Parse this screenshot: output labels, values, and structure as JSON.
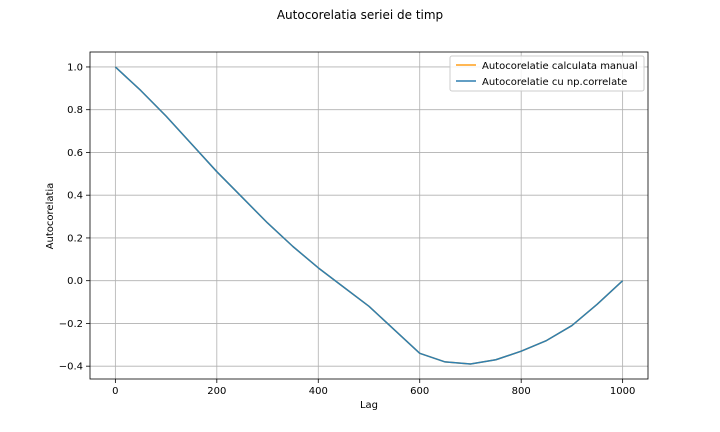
{
  "chart_data": {
    "type": "line",
    "title": "Autocorelatia seriei de timp",
    "xlabel": "Lag",
    "ylabel": "Autocorelatia",
    "xlim": [
      -50,
      1050
    ],
    "ylim": [
      -0.46,
      1.07
    ],
    "xticks": [
      0,
      200,
      400,
      600,
      800,
      1000
    ],
    "xtick_labels": [
      "0",
      "200",
      "400",
      "600",
      "800",
      "1000"
    ],
    "yticks": [
      1.0,
      0.8,
      0.6,
      0.4,
      0.2,
      0.0,
      -0.2,
      -0.4
    ],
    "ytick_labels": [
      "1.0",
      "0.8",
      "0.6",
      "0.4",
      "0.2",
      "0.0",
      "−0.2",
      "−0.4"
    ],
    "grid": true,
    "legend_position": "top-right",
    "series": [
      {
        "name": "Autocorelatie calculata manual",
        "color": "#ff9f1a",
        "x": [
          0,
          50,
          100,
          150,
          200,
          250,
          300,
          350,
          400,
          450,
          500,
          550,
          600,
          650,
          700,
          750,
          800,
          850,
          900,
          950,
          1000
        ],
        "values": [
          1.0,
          0.89,
          0.77,
          0.64,
          0.51,
          0.39,
          0.27,
          0.16,
          0.06,
          -0.03,
          -0.12,
          -0.23,
          -0.34,
          -0.38,
          -0.39,
          -0.37,
          -0.33,
          -0.28,
          -0.21,
          -0.11,
          0.0
        ]
      },
      {
        "name": "Autocorelatie cu np.correlate",
        "color": "#2f7fb0",
        "x": [
          0,
          50,
          100,
          150,
          200,
          250,
          300,
          350,
          400,
          450,
          500,
          550,
          600,
          650,
          700,
          750,
          800,
          850,
          900,
          950,
          1000
        ],
        "values": [
          1.0,
          0.89,
          0.77,
          0.64,
          0.51,
          0.39,
          0.27,
          0.16,
          0.06,
          -0.03,
          -0.12,
          -0.23,
          -0.34,
          -0.38,
          -0.39,
          -0.37,
          -0.33,
          -0.28,
          -0.21,
          -0.11,
          0.0
        ]
      }
    ]
  }
}
